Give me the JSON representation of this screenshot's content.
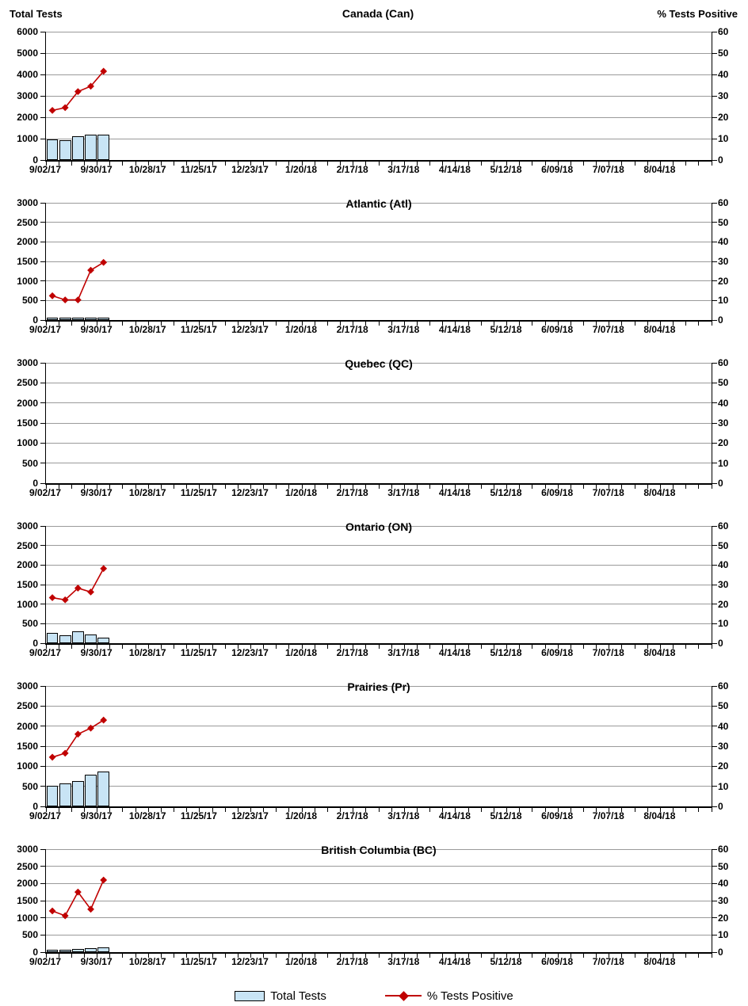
{
  "headers": {
    "left": "Total Tests",
    "right": "% Tests Positive"
  },
  "legend": {
    "items": [
      {
        "label": "Total Tests",
        "type": "bar",
        "color": "#C8E4F5",
        "border_color": "#000000"
      },
      {
        "label": "% Tests Positive",
        "type": "line",
        "color": "#C00000"
      }
    ]
  },
  "axes": {
    "x_tick_labels": [
      "9/02/17",
      "9/30/17",
      "10/28/17",
      "11/25/17",
      "12/23/17",
      "1/20/18",
      "2/17/18",
      "3/17/18",
      "4/14/18",
      "5/12/18",
      "6/09/18",
      "7/07/18",
      "8/04/18"
    ],
    "x_weeks_shown": 52,
    "x_tick_every_weeks": 1,
    "x_label_every_weeks": 4,
    "right_ticks": [
      0,
      10,
      20,
      30,
      40,
      50,
      60
    ],
    "grid": "horizontal"
  },
  "chart_data": [
    {
      "type": "bar+line",
      "title": "Canada (Can)",
      "left_axis_label": "Total Tests",
      "right_axis_label": "% Tests Positive",
      "left_ylim": [
        0,
        6000
      ],
      "left_ticks": [
        0,
        1000,
        2000,
        3000,
        4000,
        5000,
        6000
      ],
      "right_ylim": [
        0,
        60
      ],
      "right_ticks": [
        0,
        10,
        20,
        30,
        40,
        50,
        60
      ],
      "x": [
        "9/02/17",
        "9/09/17",
        "9/16/17",
        "9/23/17",
        "9/30/17"
      ],
      "series": [
        {
          "name": "Total Tests",
          "type": "bar",
          "axis": "left",
          "color": "#C8E4F5",
          "values": [
            950,
            920,
            1100,
            1200,
            1200
          ]
        },
        {
          "name": "% Tests Positive",
          "type": "line",
          "axis": "right",
          "color": "#C00000",
          "values": [
            23.2,
            24.5,
            32.0,
            34.5,
            41.5
          ]
        }
      ]
    },
    {
      "type": "bar+line",
      "title": "Atlantic (Atl)",
      "left_axis_label": "Total Tests",
      "right_axis_label": "% Tests Positive",
      "left_ylim": [
        0,
        3000
      ],
      "left_ticks": [
        0,
        500,
        1000,
        1500,
        2000,
        2500,
        3000
      ],
      "right_ylim": [
        0,
        60
      ],
      "right_ticks": [
        0,
        10,
        20,
        30,
        40,
        50,
        60
      ],
      "x": [
        "9/02/17",
        "9/09/17",
        "9/16/17",
        "9/23/17",
        "9/30/17"
      ],
      "series": [
        {
          "name": "Total Tests",
          "type": "bar",
          "axis": "left",
          "color": "#C8E4F5",
          "values": [
            60,
            55,
            70,
            65,
            65
          ]
        },
        {
          "name": "% Tests Positive",
          "type": "line",
          "axis": "right",
          "color": "#C00000",
          "values": [
            12.4,
            10.3,
            10.3,
            25.5,
            29.5
          ]
        }
      ]
    },
    {
      "type": "bar+line",
      "title": "Quebec (QC)",
      "left_axis_label": "Total Tests",
      "right_axis_label": "% Tests Positive",
      "left_ylim": [
        0,
        3000
      ],
      "left_ticks": [
        0,
        500,
        1000,
        1500,
        2000,
        2500,
        3000
      ],
      "right_ylim": [
        0,
        60
      ],
      "right_ticks": [
        0,
        10,
        20,
        30,
        40,
        50,
        60
      ],
      "x": [],
      "series": [
        {
          "name": "Total Tests",
          "type": "bar",
          "axis": "left",
          "color": "#C8E4F5",
          "values": []
        },
        {
          "name": "% Tests Positive",
          "type": "line",
          "axis": "right",
          "color": "#C00000",
          "values": []
        }
      ]
    },
    {
      "type": "bar+line",
      "title": "Ontario (ON)",
      "left_axis_label": "Total Tests",
      "right_axis_label": "% Tests Positive",
      "left_ylim": [
        0,
        3000
      ],
      "left_ticks": [
        0,
        500,
        1000,
        1500,
        2000,
        2500,
        3000
      ],
      "right_ylim": [
        0,
        60
      ],
      "right_ticks": [
        0,
        10,
        20,
        30,
        40,
        50,
        60
      ],
      "x": [
        "9/02/17",
        "9/09/17",
        "9/16/17",
        "9/23/17",
        "9/30/17"
      ],
      "series": [
        {
          "name": "Total Tests",
          "type": "bar",
          "axis": "left",
          "color": "#C8E4F5",
          "values": [
            260,
            200,
            300,
            220,
            150
          ]
        },
        {
          "name": "% Tests Positive",
          "type": "line",
          "axis": "right",
          "color": "#C00000",
          "values": [
            23.3,
            22.2,
            28.2,
            26.2,
            38.2
          ]
        }
      ]
    },
    {
      "type": "bar+line",
      "title": "Prairies (Pr)",
      "left_axis_label": "Total Tests",
      "right_axis_label": "% Tests Positive",
      "left_ylim": [
        0,
        3000
      ],
      "left_ticks": [
        0,
        500,
        1000,
        1500,
        2000,
        2500,
        3000
      ],
      "right_ylim": [
        0,
        60
      ],
      "right_ticks": [
        0,
        10,
        20,
        30,
        40,
        50,
        60
      ],
      "x": [
        "9/02/17",
        "9/09/17",
        "9/16/17",
        "9/23/17",
        "9/30/17"
      ],
      "series": [
        {
          "name": "Total Tests",
          "type": "bar",
          "axis": "left",
          "color": "#C8E4F5",
          "values": [
            520,
            580,
            640,
            780,
            860
          ]
        },
        {
          "name": "% Tests Positive",
          "type": "line",
          "axis": "right",
          "color": "#C00000",
          "values": [
            24.5,
            26.5,
            36.0,
            39.0,
            43.0
          ]
        }
      ]
    },
    {
      "type": "bar+line",
      "title": "British Columbia (BC)",
      "left_axis_label": "Total Tests",
      "right_axis_label": "% Tests Positive",
      "left_ylim": [
        0,
        3000
      ],
      "left_ticks": [
        0,
        500,
        1000,
        1500,
        2000,
        2500,
        3000
      ],
      "right_ylim": [
        0,
        60
      ],
      "right_ticks": [
        0,
        10,
        20,
        30,
        40,
        50,
        60
      ],
      "x": [
        "9/02/17",
        "9/09/17",
        "9/16/17",
        "9/23/17",
        "9/30/17"
      ],
      "series": [
        {
          "name": "Total Tests",
          "type": "bar",
          "axis": "left",
          "color": "#C8E4F5",
          "values": [
            60,
            60,
            90,
            110,
            130
          ]
        },
        {
          "name": "% Tests Positive",
          "type": "line",
          "axis": "right",
          "color": "#C00000",
          "values": [
            24.0,
            21.2,
            35.0,
            25.0,
            42.0
          ]
        }
      ]
    }
  ]
}
